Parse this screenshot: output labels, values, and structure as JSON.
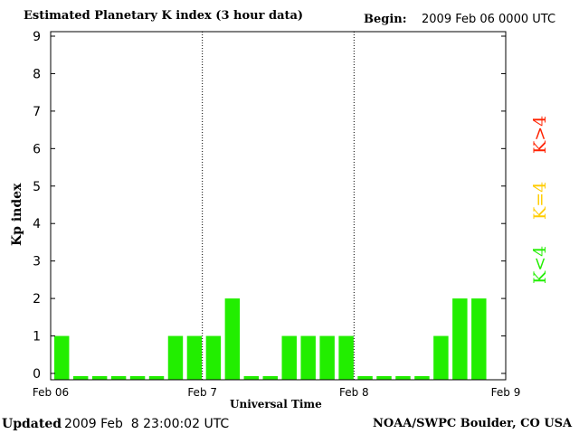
{
  "header": {
    "title": "Estimated Planetary K index (3 hour data)",
    "begin_label": "Begin:",
    "begin_value": "2009 Feb 06 0000 UTC"
  },
  "footer": {
    "updated_label": "Updated",
    "updated_value": "2009 Feb  8 23:00:02 UTC",
    "credit": "NOAA/SWPC Boulder, CO USA"
  },
  "legend": {
    "high": {
      "label": "K>4",
      "color": "#ff2200"
    },
    "mid": {
      "label": "K=4",
      "color": "#ffcc00"
    },
    "low": {
      "label": "K<4",
      "color": "#22ee00"
    }
  },
  "chart_data": {
    "type": "bar",
    "title": "Estimated Planetary K index (3 hour data)",
    "xlabel": "Universal Time",
    "ylabel": "Kp index",
    "ylim": [
      0,
      9
    ],
    "yticks": [
      "0",
      "1",
      "2",
      "3",
      "4",
      "5",
      "6",
      "7",
      "8",
      "9"
    ],
    "xticks": [
      "Feb 06",
      "Feb 7",
      "Feb 8",
      "Feb 9"
    ],
    "day_separators": [
      "Feb 7",
      "Feb 8"
    ],
    "bar_color": "#22ee00",
    "categories": [
      "Feb 06 00",
      "Feb 06 03",
      "Feb 06 06",
      "Feb 06 09",
      "Feb 06 12",
      "Feb 06 15",
      "Feb 06 18",
      "Feb 06 21",
      "Feb 7 00",
      "Feb 7 03",
      "Feb 7 06",
      "Feb 7 09",
      "Feb 7 12",
      "Feb 7 15",
      "Feb 7 18",
      "Feb 7 21",
      "Feb 8 00",
      "Feb 8 03",
      "Feb 8 06",
      "Feb 8 09",
      "Feb 8 12",
      "Feb 8 15",
      "Feb 8 18",
      "Feb 8 21"
    ],
    "values": [
      1,
      0,
      0,
      0,
      0,
      0,
      1,
      1,
      1,
      2,
      0,
      0,
      1,
      1,
      1,
      1,
      0,
      0,
      0,
      0,
      1,
      2,
      2,
      null
    ],
    "grid": false
  }
}
